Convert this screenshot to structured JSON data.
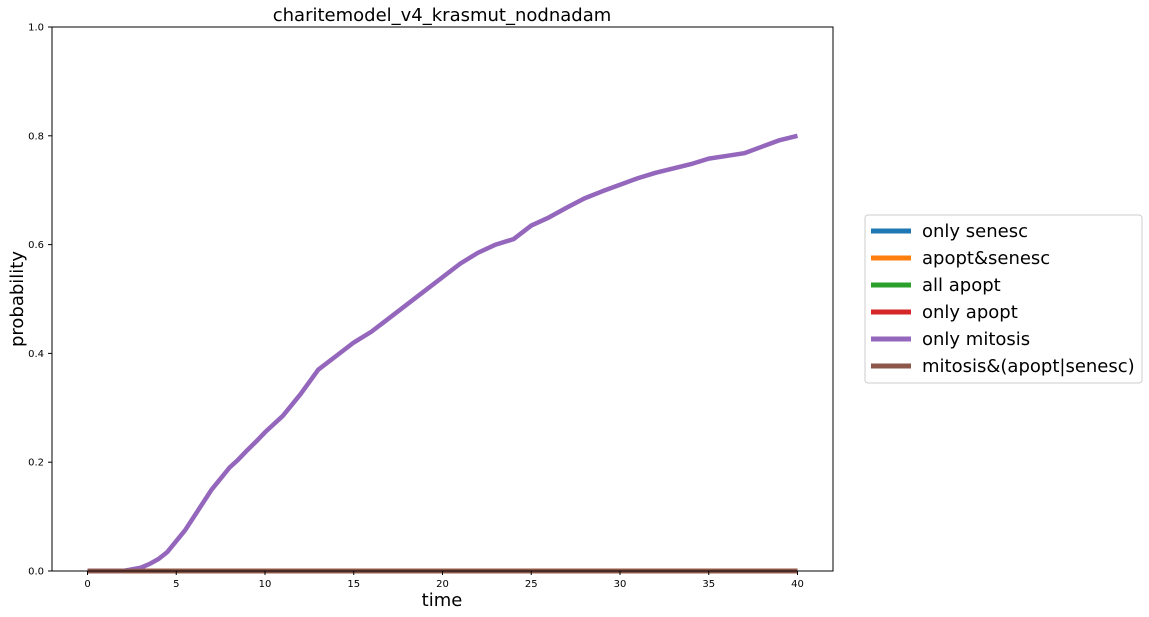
{
  "chart_data": {
    "type": "line",
    "title": "charitemodel_v4_krasmut_nodnadam",
    "xlabel": "time",
    "ylabel": "probability",
    "xlim": [
      -2,
      42
    ],
    "ylim": [
      0,
      1
    ],
    "xticks": [
      0,
      5,
      10,
      15,
      20,
      25,
      30,
      35,
      40
    ],
    "yticks": [
      0.0,
      0.2,
      0.4,
      0.6,
      0.8,
      1.0
    ],
    "ytick_labels": [
      "0.0",
      "0.2",
      "0.4",
      "0.6",
      "0.8",
      "1.0"
    ],
    "grid": false,
    "legend_position": "right-outside",
    "series": [
      {
        "name": "only senesc",
        "color": "#1f77b4",
        "x": [
          0,
          40
        ],
        "y": [
          0,
          0
        ]
      },
      {
        "name": "apopt&senesc",
        "color": "#ff7f0e",
        "x": [
          0,
          40
        ],
        "y": [
          0,
          0
        ]
      },
      {
        "name": "all apopt",
        "color": "#2ca02c",
        "x": [
          0,
          40
        ],
        "y": [
          0,
          0
        ]
      },
      {
        "name": "only apopt",
        "color": "#d62728",
        "x": [
          0,
          40
        ],
        "y": [
          0,
          0
        ]
      },
      {
        "name": "only mitosis",
        "color": "#9467bd",
        "x": [
          0,
          1,
          2,
          2.5,
          3,
          3.5,
          4,
          4.5,
          5,
          5.5,
          6,
          6.5,
          7,
          7.5,
          8,
          8.5,
          9,
          9.5,
          10,
          11,
          12,
          13,
          14,
          15,
          16,
          17,
          18,
          19,
          20,
          21,
          22,
          23,
          24,
          25,
          26,
          27,
          28,
          29,
          30,
          31,
          32,
          33,
          34,
          35,
          36,
          37,
          38,
          39,
          40
        ],
        "y": [
          0,
          0,
          0,
          0.003,
          0.006,
          0.013,
          0.022,
          0.035,
          0.055,
          0.075,
          0.1,
          0.125,
          0.15,
          0.17,
          0.19,
          0.205,
          0.222,
          0.238,
          0.255,
          0.285,
          0.325,
          0.37,
          0.395,
          0.42,
          0.44,
          0.465,
          0.49,
          0.515,
          0.54,
          0.565,
          0.585,
          0.6,
          0.61,
          0.635,
          0.65,
          0.668,
          0.685,
          0.698,
          0.71,
          0.722,
          0.732,
          0.74,
          0.748,
          0.758,
          0.763,
          0.768,
          0.78,
          0.792,
          0.8
        ]
      },
      {
        "name": "mitosis&(apopt|senesc)",
        "color": "#8c564b",
        "x": [
          0,
          40
        ],
        "y": [
          0,
          0
        ]
      }
    ]
  }
}
